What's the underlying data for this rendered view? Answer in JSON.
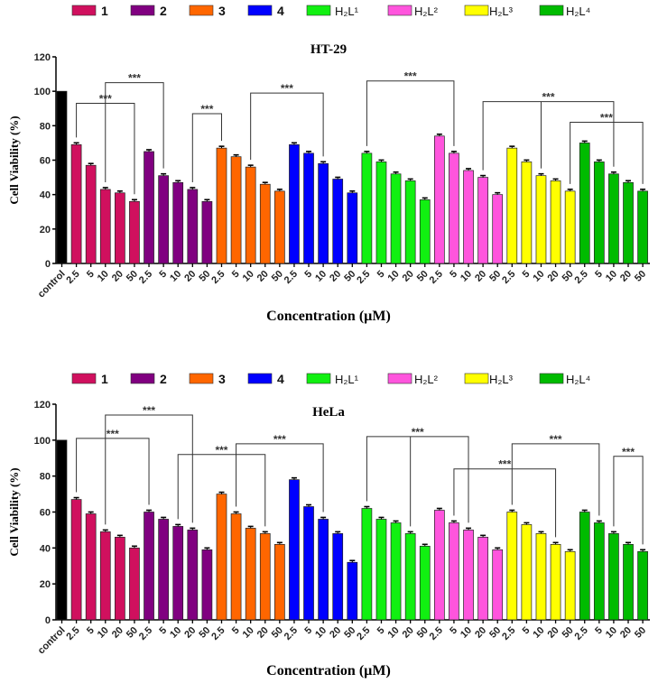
{
  "legend": [
    {
      "label": "1",
      "color": "#d0105e"
    },
    {
      "label": "2",
      "color": "#800080"
    },
    {
      "label": "3",
      "color": "#ff6600"
    },
    {
      "label": "4",
      "color": "#0000ff"
    },
    {
      "label": "H₂L¹",
      "color": "#11f011"
    },
    {
      "label": "H₂L²",
      "color": "#ff55dd"
    },
    {
      "label": "H₂L³",
      "color": "#ffff00"
    },
    {
      "label": "H₂L⁴",
      "color": "#00bb00"
    }
  ],
  "control_color": "#000000",
  "chart_data": [
    {
      "type": "bar",
      "title": "HT-29",
      "xlabel": "Concentration (µM)",
      "ylabel": "Cell Viability (%)",
      "ylim": [
        0,
        120
      ],
      "yticks": [
        0,
        20,
        40,
        60,
        80,
        100,
        120
      ],
      "control": {
        "label": "control",
        "value": 100
      },
      "concentrations": [
        "2.5",
        "5",
        "10",
        "20",
        "50"
      ],
      "series": [
        {
          "name": "1",
          "values": [
            69,
            57,
            43,
            41,
            36
          ]
        },
        {
          "name": "2",
          "values": [
            65,
            51,
            47,
            43,
            36
          ]
        },
        {
          "name": "3",
          "values": [
            67,
            62,
            56,
            46,
            42
          ]
        },
        {
          "name": "4",
          "values": [
            69,
            64,
            58,
            49,
            41
          ]
        },
        {
          "name": "H₂L¹",
          "values": [
            64,
            59,
            52,
            48,
            37
          ]
        },
        {
          "name": "H₂L²",
          "values": [
            74,
            64,
            54,
            50,
            40
          ]
        },
        {
          "name": "H₂L³",
          "values": [
            67,
            59,
            51,
            48,
            42
          ]
        },
        {
          "name": "H₂L⁴",
          "values": [
            70,
            59,
            52,
            47,
            42
          ]
        }
      ],
      "significance": [
        {
          "from": "1 @ 2.5",
          "to": "1 @ 50",
          "level": 93,
          "label": "***"
        },
        {
          "from": "1 @ 10",
          "to": "2 @ 5",
          "level": 105,
          "label": "***"
        },
        {
          "from": "2 @ 20",
          "to": "3 @ 2.5",
          "level": 87,
          "label": "***"
        },
        {
          "from": "3 @ 10",
          "to": "4 @ 10",
          "level": 99,
          "label": "***"
        },
        {
          "from": "H₂L¹ @ 2.5",
          "to": "H₂L² @ 5",
          "level": 106,
          "label": "***"
        },
        {
          "from": "H₂L² @ 20",
          "to": "H₂L⁴ @ 10",
          "mid": "H₂L³ @ 10",
          "level": 94,
          "label": "***"
        },
        {
          "from": "H₂L³ @ 50",
          "to": "H₂L⁴ @ 50",
          "level": 82,
          "label": "***"
        }
      ]
    },
    {
      "type": "bar",
      "title": "HeLa",
      "xlabel": "Concentration (µM)",
      "ylabel": "Cell Viability (%)",
      "ylim": [
        0,
        120
      ],
      "yticks": [
        0,
        20,
        40,
        60,
        80,
        100,
        120
      ],
      "control": {
        "label": "control",
        "value": 100
      },
      "concentrations": [
        "2.5",
        "5",
        "10",
        "20",
        "50"
      ],
      "series": [
        {
          "name": "1",
          "values": [
            67,
            59,
            49,
            46,
            40
          ]
        },
        {
          "name": "2",
          "values": [
            60,
            56,
            52,
            50,
            39
          ]
        },
        {
          "name": "3",
          "values": [
            70,
            59,
            51,
            48,
            42
          ]
        },
        {
          "name": "4",
          "values": [
            78,
            63,
            56,
            48,
            32
          ]
        },
        {
          "name": "H₂L¹",
          "values": [
            62,
            56,
            54,
            48,
            41
          ]
        },
        {
          "name": "H₂L²",
          "values": [
            61,
            54,
            50,
            46,
            39
          ]
        },
        {
          "name": "H₂L³",
          "values": [
            60,
            53,
            48,
            42,
            38
          ]
        },
        {
          "name": "H₂L⁴",
          "values": [
            60,
            54,
            48,
            42,
            38
          ]
        }
      ],
      "significance": [
        {
          "from": "1 @ 2.5",
          "to": "2 @ 2.5",
          "level": 101,
          "label": "***"
        },
        {
          "from": "1 @ 10",
          "to": "2 @ 20",
          "level": 114,
          "label": "***"
        },
        {
          "from": "2 @ 10",
          "to": "3 @ 20",
          "level": 92,
          "label": "***"
        },
        {
          "from": "3 @ 5",
          "to": "4 @ 10",
          "level": 98,
          "label": "***"
        },
        {
          "from": "H₂L¹ @ 2.5",
          "to": "H₂L² @ 10",
          "mid": "H₂L¹ @ 20",
          "level": 102,
          "label": "***"
        },
        {
          "from": "H₂L² @ 5",
          "to": "H₂L³ @ 20",
          "level": 84,
          "label": "***"
        },
        {
          "from": "H₂L³ @ 2.5",
          "to": "H₂L⁴ @ 5",
          "level": 98,
          "label": "***"
        },
        {
          "from": "H₂L⁴ @ 10",
          "to": "H₂L⁴ @ 50",
          "level": 91,
          "label": "***"
        }
      ]
    }
  ]
}
